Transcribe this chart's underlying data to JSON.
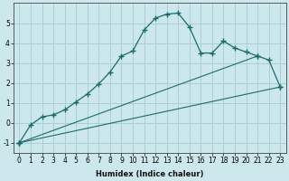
{
  "xlabel": "Humidex (Indice chaleur)",
  "background_color": "#cde8ec",
  "grid_color": "#aacfd4",
  "line_color": "#1a6b6b",
  "xlim": [
    -0.5,
    23.5
  ],
  "ylim": [
    -1.5,
    6.0
  ],
  "yticks": [
    -1,
    0,
    1,
    2,
    3,
    4,
    5
  ],
  "xticks": [
    0,
    1,
    2,
    3,
    4,
    5,
    6,
    7,
    8,
    9,
    10,
    11,
    12,
    13,
    14,
    15,
    16,
    17,
    18,
    19,
    20,
    21,
    22,
    23
  ],
  "series1_x": [
    0,
    23
  ],
  "series1_y": [
    -1.0,
    1.8
  ],
  "series2_x": [
    0,
    21
  ],
  "series2_y": [
    -1.0,
    3.35
  ],
  "series3_x": [
    0,
    1,
    2,
    3,
    4,
    5,
    6,
    7,
    8,
    9,
    10,
    11,
    12,
    13,
    14,
    15,
    16,
    17,
    18,
    19,
    20,
    21,
    22,
    23
  ],
  "series3_y": [
    -1.0,
    -0.1,
    0.3,
    0.4,
    0.65,
    1.05,
    1.45,
    1.95,
    2.55,
    3.35,
    3.6,
    4.65,
    5.25,
    5.45,
    5.5,
    4.8,
    3.5,
    3.5,
    4.1,
    3.75,
    3.55,
    3.35,
    3.15,
    1.8
  ]
}
